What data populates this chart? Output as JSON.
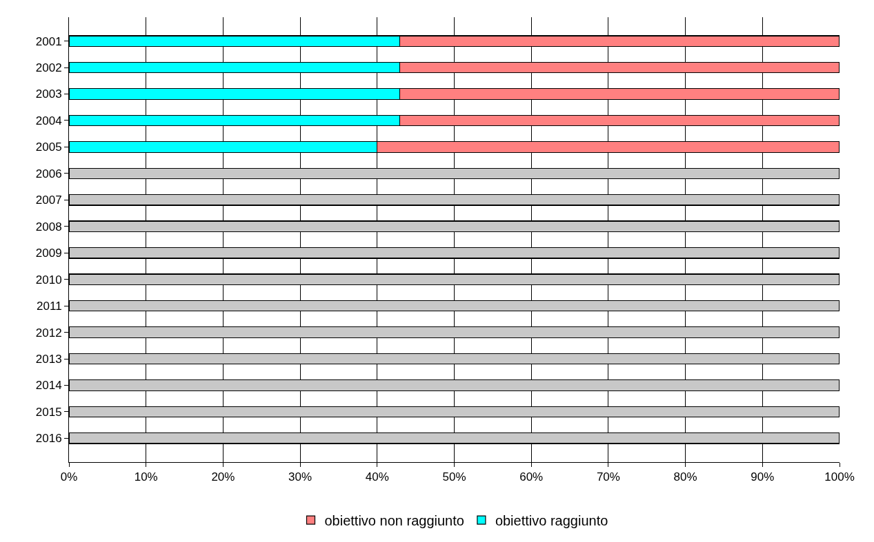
{
  "chart_data": {
    "type": "bar",
    "orientation": "horizontal",
    "stacked": true,
    "categories": [
      "2001",
      "2002",
      "2003",
      "2004",
      "2005",
      "2006",
      "2007",
      "2008",
      "2009",
      "2010",
      "2011",
      "2012",
      "2013",
      "2014",
      "2015",
      "2016"
    ],
    "series": [
      {
        "name": "obiettivo raggiunto",
        "color": "#00ffff",
        "values": [
          42.9,
          42.9,
          42.9,
          42.9,
          40,
          null,
          null,
          null,
          null,
          null,
          null,
          null,
          null,
          null,
          null,
          null
        ]
      },
      {
        "name": "obiettivo non raggiunto",
        "color": "#ff8080",
        "values": [
          57.1,
          57.1,
          57.1,
          57.1,
          60,
          null,
          null,
          null,
          null,
          null,
          null,
          null,
          null,
          null,
          null,
          null
        ]
      },
      {
        "color": "#c8c8c8",
        "values": [
          null,
          null,
          null,
          null,
          null,
          100,
          100,
          100,
          100,
          100,
          100,
          100,
          100,
          100,
          100,
          100
        ]
      }
    ],
    "xlim": [
      0,
      100
    ],
    "xticks": [
      {
        "value": 0,
        "label": "0%"
      },
      {
        "value": 10,
        "label": "10%"
      },
      {
        "value": 20,
        "label": "20%"
      },
      {
        "value": 30,
        "label": "30%"
      },
      {
        "value": 40,
        "label": "40%"
      },
      {
        "value": 50,
        "label": "50%"
      },
      {
        "value": 60,
        "label": "60%"
      },
      {
        "value": 70,
        "label": "70%"
      },
      {
        "value": 80,
        "label": "80%"
      },
      {
        "value": 90,
        "label": "90%"
      },
      {
        "value": 100,
        "label": "100%"
      }
    ],
    "grid": "x",
    "legend": "bottom"
  }
}
